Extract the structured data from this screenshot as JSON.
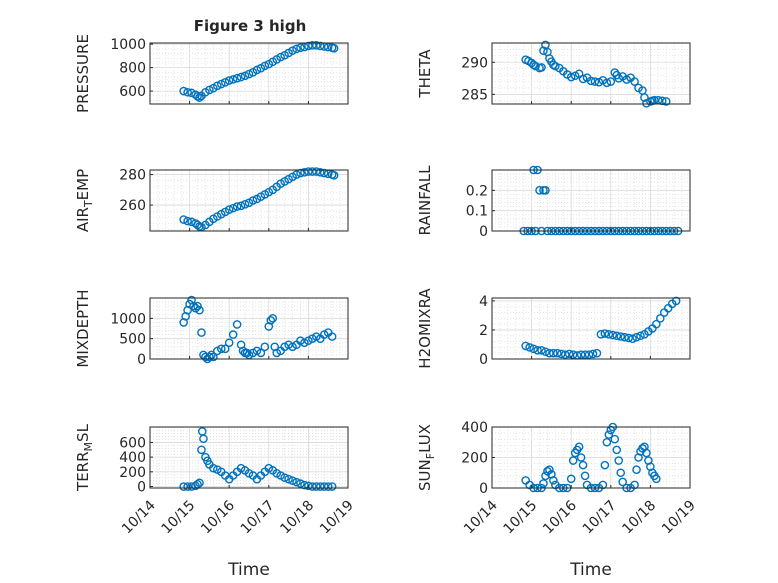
{
  "figure": {
    "title": "Figure 3 high",
    "xlabel": "Time",
    "x_ticks": [
      "10/14",
      "10/15",
      "10/16",
      "10/17",
      "10/18",
      "10/19"
    ],
    "marker_color": "#0072BD"
  },
  "chart_data": [
    {
      "type": "scatter",
      "title": "Figure 3 high",
      "ylabel": "PRESSURE",
      "xlim": [
        0,
        5
      ],
      "ylim": [
        490,
        1010
      ],
      "yticks": [
        600,
        800,
        1000
      ],
      "grid": true,
      "x": [
        0.85,
        0.95,
        1.05,
        1.15,
        1.2,
        1.25,
        1.3,
        1.4,
        1.5,
        1.6,
        1.7,
        1.8,
        1.9,
        2.0,
        2.1,
        2.2,
        2.3,
        2.4,
        2.5,
        2.6,
        2.7,
        2.8,
        2.9,
        3.0,
        3.1,
        3.2,
        3.3,
        3.4,
        3.5,
        3.6,
        3.7,
        3.8,
        3.9,
        4.0,
        4.1,
        4.2,
        4.3,
        4.4,
        4.5,
        4.6,
        4.65
      ],
      "y": [
        600,
        590,
        585,
        570,
        555,
        545,
        560,
        590,
        610,
        625,
        645,
        660,
        675,
        690,
        700,
        710,
        720,
        730,
        745,
        760,
        780,
        795,
        815,
        830,
        850,
        870,
        890,
        905,
        925,
        945,
        960,
        970,
        975,
        985,
        990,
        990,
        985,
        980,
        975,
        970,
        965
      ]
    },
    {
      "type": "scatter",
      "ylabel": "THETA",
      "xlim": [
        0,
        5
      ],
      "ylim": [
        283.5,
        293
      ],
      "yticks": [
        285,
        290
      ],
      "grid": true,
      "x": [
        0.85,
        0.92,
        1.0,
        1.05,
        1.1,
        1.2,
        1.25,
        1.3,
        1.35,
        1.4,
        1.45,
        1.5,
        1.55,
        1.6,
        1.7,
        1.8,
        1.9,
        2.0,
        2.1,
        2.2,
        2.3,
        2.4,
        2.5,
        2.6,
        2.7,
        2.8,
        2.9,
        3.0,
        3.1,
        3.15,
        3.2,
        3.3,
        3.4,
        3.5,
        3.6,
        3.7,
        3.8,
        3.85,
        3.9,
        4.0,
        4.05,
        4.1,
        4.2,
        4.3,
        4.4
      ],
      "y": [
        290.4,
        290.2,
        289.9,
        289.6,
        289.4,
        289.1,
        289.2,
        291.8,
        292.7,
        291.6,
        290.6,
        290.1,
        289.6,
        289.4,
        289.1,
        288.6,
        288.1,
        287.7,
        287.9,
        288.2,
        287.4,
        287.6,
        287.1,
        287.0,
        286.9,
        287.2,
        286.8,
        287.0,
        288.4,
        288.0,
        287.5,
        287.8,
        287.3,
        287.6,
        287.0,
        286.0,
        285.6,
        284.5,
        283.6,
        283.9,
        284.0,
        284.1,
        284.1,
        284.0,
        283.9
      ]
    },
    {
      "type": "scatter",
      "ylabel": "AIR_TEMP",
      "xlim": [
        0,
        5
      ],
      "ylim": [
        243,
        283
      ],
      "yticks": [
        260,
        280
      ],
      "grid": true,
      "x": [
        0.85,
        0.95,
        1.05,
        1.15,
        1.2,
        1.25,
        1.3,
        1.4,
        1.5,
        1.6,
        1.7,
        1.8,
        1.9,
        2.0,
        2.1,
        2.2,
        2.3,
        2.4,
        2.5,
        2.6,
        2.7,
        2.8,
        2.9,
        3.0,
        3.1,
        3.2,
        3.3,
        3.4,
        3.5,
        3.6,
        3.7,
        3.8,
        3.9,
        4.0,
        4.1,
        4.2,
        4.3,
        4.4,
        4.5,
        4.6,
        4.65
      ],
      "y": [
        250.5,
        249.5,
        249,
        248,
        247,
        246,
        245.5,
        247,
        249,
        251,
        252.5,
        254,
        255.5,
        257,
        258,
        259,
        259.5,
        260.5,
        261.5,
        263,
        264,
        265.5,
        267,
        268.5,
        270,
        272,
        274,
        275.5,
        277,
        278.5,
        280,
        281,
        281.5,
        282,
        282,
        282,
        281.5,
        281,
        280.5,
        280,
        279.5
      ]
    },
    {
      "type": "scatter",
      "ylabel": "RAINFALL",
      "xlim": [
        0,
        5
      ],
      "ylim": [
        0,
        0.3
      ],
      "yticks": [
        0,
        0.1,
        0.2
      ],
      "grid": true,
      "x": [
        0.8,
        0.9,
        1.0,
        1.05,
        1.1,
        1.15,
        1.2,
        1.25,
        1.3,
        1.35,
        1.4,
        1.5,
        1.6,
        1.7,
        1.8,
        1.9,
        2.0,
        2.1,
        2.2,
        2.3,
        2.4,
        2.5,
        2.6,
        2.7,
        2.8,
        2.9,
        3.0,
        3.1,
        3.2,
        3.3,
        3.4,
        3.5,
        3.6,
        3.7,
        3.8,
        3.9,
        4.0,
        4.1,
        4.2,
        4.3,
        4.4,
        4.5,
        4.6,
        4.7
      ],
      "y": [
        0,
        0,
        0,
        0.3,
        0,
        0.3,
        0.2,
        0,
        0.2,
        0.2,
        0,
        0,
        0,
        0,
        0,
        0,
        0,
        0,
        0,
        0,
        0,
        0,
        0,
        0,
        0,
        0,
        0,
        0,
        0,
        0,
        0,
        0,
        0,
        0,
        0,
        0,
        0,
        0,
        0,
        0,
        0,
        0,
        0,
        0
      ]
    },
    {
      "type": "scatter",
      "ylabel": "MIXDEPTH",
      "xlim": [
        0,
        5
      ],
      "ylim": [
        0,
        1500
      ],
      "yticks": [
        0,
        500,
        1000
      ],
      "grid": true,
      "x": [
        0.85,
        0.9,
        0.95,
        1.0,
        1.05,
        1.1,
        1.15,
        1.2,
        1.25,
        1.3,
        1.35,
        1.4,
        1.45,
        1.5,
        1.55,
        1.6,
        1.7,
        1.8,
        1.9,
        2.0,
        2.1,
        2.2,
        2.3,
        2.35,
        2.4,
        2.45,
        2.5,
        2.6,
        2.7,
        2.8,
        2.9,
        3.0,
        3.05,
        3.1,
        3.15,
        3.2,
        3.3,
        3.4,
        3.5,
        3.6,
        3.7,
        3.8,
        3.9,
        4.0,
        4.1,
        4.2,
        4.3,
        4.4,
        4.5,
        4.6
      ],
      "y": [
        900,
        1050,
        1200,
        1350,
        1450,
        1300,
        1250,
        1300,
        1200,
        650,
        100,
        50,
        0,
        50,
        100,
        50,
        200,
        250,
        250,
        400,
        600,
        850,
        350,
        200,
        150,
        150,
        100,
        150,
        200,
        150,
        300,
        800,
        950,
        1000,
        300,
        150,
        200,
        300,
        350,
        300,
        350,
        450,
        400,
        450,
        500,
        550,
        500,
        600,
        650,
        550
      ]
    },
    {
      "type": "scatter",
      "ylabel": "H2OMIXRA",
      "xlim": [
        0,
        5
      ],
      "ylim": [
        0,
        4.2
      ],
      "yticks": [
        0,
        2,
        4
      ],
      "grid": true,
      "x": [
        0.85,
        0.95,
        1.05,
        1.15,
        1.25,
        1.35,
        1.45,
        1.55,
        1.65,
        1.75,
        1.85,
        1.95,
        2.05,
        2.15,
        2.25,
        2.35,
        2.45,
        2.55,
        2.65,
        2.75,
        2.85,
        2.95,
        3.05,
        3.15,
        3.25,
        3.35,
        3.45,
        3.55,
        3.65,
        3.75,
        3.85,
        3.95,
        4.05,
        4.15,
        4.25,
        4.35,
        4.45,
        4.55,
        4.65
      ],
      "y": [
        0.9,
        0.8,
        0.7,
        0.6,
        0.6,
        0.5,
        0.4,
        0.4,
        0.4,
        0.35,
        0.3,
        0.35,
        0.3,
        0.25,
        0.3,
        0.3,
        0.3,
        0.35,
        0.4,
        1.7,
        1.75,
        1.7,
        1.65,
        1.6,
        1.55,
        1.5,
        1.45,
        1.4,
        1.5,
        1.6,
        1.7,
        1.9,
        2.1,
        2.4,
        2.8,
        3.2,
        3.5,
        3.8,
        4.0
      ]
    },
    {
      "type": "scatter",
      "ylabel": "TERR_MSL",
      "xlim": [
        0,
        5
      ],
      "ylim": [
        -20,
        810
      ],
      "yticks": [
        0,
        200,
        400,
        600
      ],
      "grid": true,
      "x": [
        0.85,
        0.95,
        1.05,
        1.15,
        1.2,
        1.25,
        1.3,
        1.32,
        1.35,
        1.4,
        1.45,
        1.5,
        1.6,
        1.7,
        1.8,
        1.9,
        2.0,
        2.1,
        2.2,
        2.3,
        2.4,
        2.5,
        2.6,
        2.7,
        2.8,
        2.9,
        3.0,
        3.1,
        3.2,
        3.3,
        3.4,
        3.5,
        3.6,
        3.7,
        3.8,
        3.9,
        4.0,
        4.1,
        4.2,
        4.3,
        4.4,
        4.5,
        4.6
      ],
      "y": [
        0,
        0,
        0,
        10,
        30,
        50,
        500,
        750,
        650,
        400,
        350,
        300,
        250,
        230,
        200,
        150,
        100,
        150,
        200,
        250,
        220,
        180,
        150,
        100,
        150,
        200,
        250,
        220,
        180,
        150,
        120,
        100,
        80,
        60,
        40,
        20,
        10,
        0,
        0,
        0,
        0,
        0,
        0
      ]
    },
    {
      "type": "scatter",
      "ylabel": "SUN_FLUX",
      "xlim": [
        0,
        5
      ],
      "ylim": [
        0,
        400
      ],
      "yticks": [
        0,
        200,
        400
      ],
      "grid": true,
      "x": [
        0.85,
        0.95,
        1.05,
        1.15,
        1.25,
        1.3,
        1.35,
        1.4,
        1.45,
        1.5,
        1.55,
        1.6,
        1.7,
        1.8,
        1.9,
        2.0,
        2.05,
        2.1,
        2.15,
        2.2,
        2.25,
        2.3,
        2.35,
        2.4,
        2.5,
        2.6,
        2.7,
        2.8,
        2.85,
        2.9,
        2.95,
        3.0,
        3.05,
        3.1,
        3.15,
        3.2,
        3.25,
        3.3,
        3.4,
        3.5,
        3.6,
        3.65,
        3.7,
        3.75,
        3.8,
        3.85,
        3.9,
        3.95,
        4.0,
        4.05,
        4.1,
        4.15
      ],
      "y": [
        50,
        20,
        0,
        0,
        0,
        30,
        80,
        110,
        120,
        90,
        50,
        20,
        0,
        0,
        0,
        60,
        180,
        230,
        250,
        270,
        200,
        150,
        80,
        20,
        0,
        0,
        0,
        20,
        150,
        300,
        350,
        380,
        400,
        320,
        250,
        180,
        100,
        40,
        0,
        0,
        20,
        120,
        200,
        240,
        260,
        270,
        230,
        180,
        140,
        100,
        80,
        60
      ]
    }
  ]
}
